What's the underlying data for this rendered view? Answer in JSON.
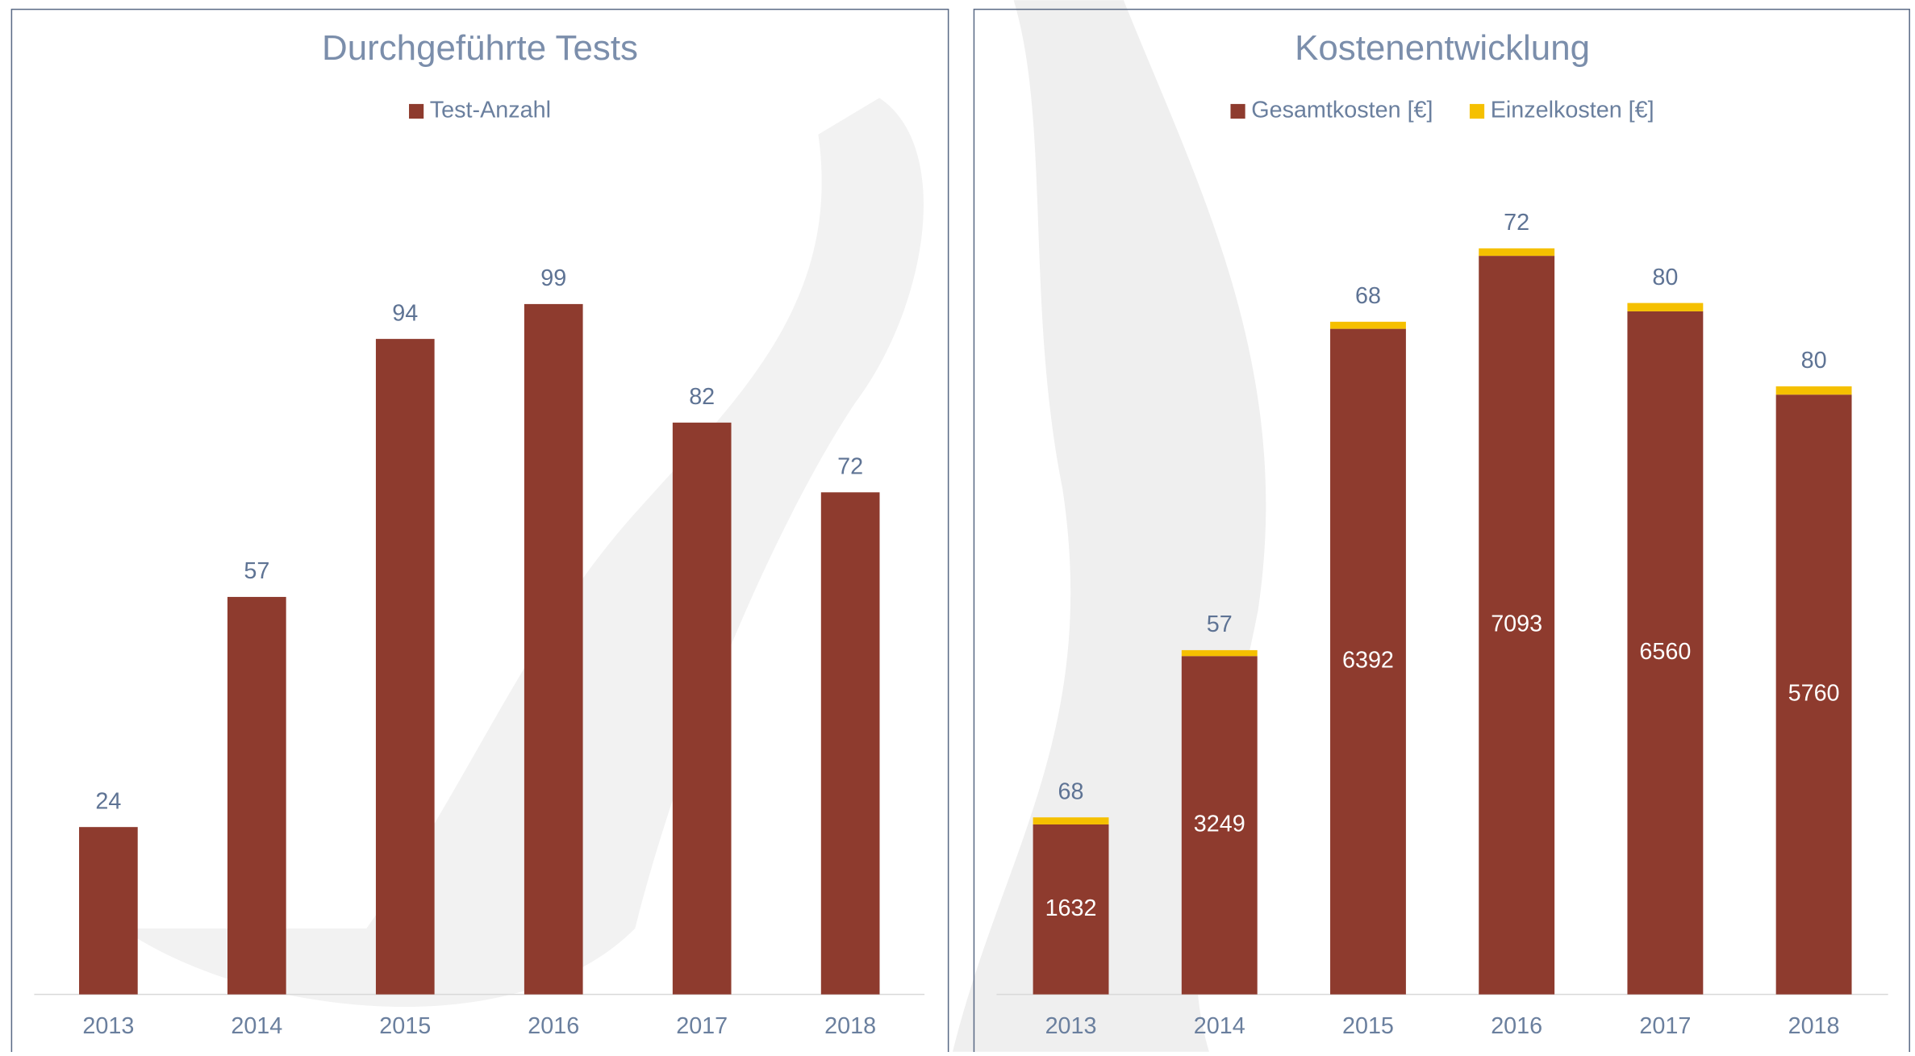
{
  "chart_data": [
    {
      "type": "bar",
      "title": "Durchgeführte Tests",
      "categories": [
        "2013",
        "2014",
        "2015",
        "2016",
        "2017",
        "2018"
      ],
      "series": [
        {
          "name": "Test-Anzahl",
          "color": "#8e3b2e",
          "values": [
            24,
            57,
            94,
            99,
            82,
            72
          ]
        }
      ],
      "ylim": [
        0,
        110
      ]
    },
    {
      "type": "stacked_bar",
      "title": "Kostenentwicklung",
      "categories": [
        "2013",
        "2014",
        "2015",
        "2016",
        "2017",
        "2018"
      ],
      "series": [
        {
          "name": "Gesamtkosten [€]",
          "color": "#8e3b2e",
          "values": [
            1632,
            3249,
            6392,
            7093,
            6560,
            5760
          ]
        },
        {
          "name": "Einzelkosten [€]",
          "color": "#f5c000",
          "values": [
            68,
            57,
            68,
            72,
            80,
            80
          ]
        }
      ],
      "ylim": [
        0,
        8000
      ]
    }
  ]
}
